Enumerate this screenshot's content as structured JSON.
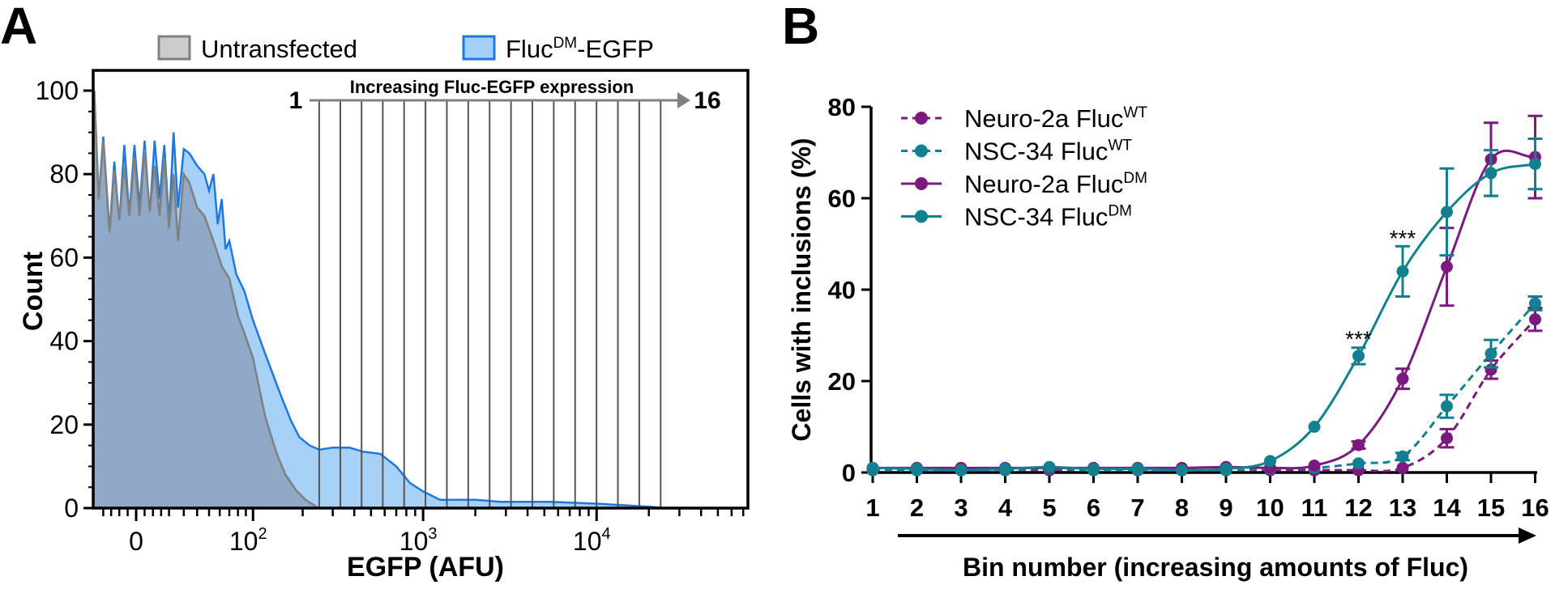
{
  "chart_data": [
    {
      "panel": "A",
      "type": "area",
      "xscale": "biexponential",
      "xlabel": "EGFP (AFU)",
      "ylabel": "Count",
      "xlim": [
        -26,
        75000
      ],
      "ylim": [
        0,
        100
      ],
      "yticks": [
        "0",
        "20",
        "40",
        "60",
        "80",
        "100"
      ],
      "xticks": [
        {
          "value": 0,
          "base": "0",
          "exp": ""
        },
        {
          "value": 100,
          "base": "10",
          "exp": "2"
        },
        {
          "value": 1000,
          "base": "10",
          "exp": "3"
        },
        {
          "value": 10000,
          "base": "10",
          "exp": "4"
        }
      ],
      "legend_position": "top",
      "legend": [
        {
          "main": "Untransfected",
          "sup": "",
          "rest": "",
          "fill": "#cccccc",
          "stroke": "#808080"
        },
        {
          "main": "Fluc",
          "sup": "DM",
          "rest": "-EGFP",
          "fill": "#a3cff8",
          "stroke": "#1f78dc"
        }
      ],
      "gates": {
        "title": "Increasing Fluc-EGFP expression",
        "start_label": "1",
        "end_label": "16",
        "edges": [
          250,
          332,
          441,
          585,
          777,
          1032,
          1371,
          1820,
          2418,
          3211,
          4264,
          5663,
          7521,
          9988,
          13265,
          17617,
          23396
        ]
      },
      "series": [
        {
          "name": "Fluc-DM-EGFP",
          "color": "#1f78dc",
          "fill": "#a8d1f8",
          "points": [
            [
              -26,
              100
            ],
            [
              -23,
              74
            ],
            [
              -20,
              89
            ],
            [
              -16,
              66
            ],
            [
              -13,
              83
            ],
            [
              -10,
              68
            ],
            [
              -7,
              87
            ],
            [
              -4,
              70
            ],
            [
              -1,
              87
            ],
            [
              2,
              72
            ],
            [
              5,
              88
            ],
            [
              8,
              70
            ],
            [
              11,
              88
            ],
            [
              14,
              74
            ],
            [
              17,
              87
            ],
            [
              20,
              68
            ],
            [
              23,
              90
            ],
            [
              26,
              72
            ],
            [
              30,
              86
            ],
            [
              34,
              85
            ],
            [
              40,
              82
            ],
            [
              46,
              80
            ],
            [
              50,
              76
            ],
            [
              54,
              80
            ],
            [
              58,
              68
            ],
            [
              62,
              74
            ],
            [
              66,
              62
            ],
            [
              70,
              64
            ],
            [
              78,
              56
            ],
            [
              88,
              52
            ],
            [
              100,
              45
            ],
            [
              119,
              37
            ],
            [
              145,
              28
            ],
            [
              170,
              21
            ],
            [
              191,
              17
            ],
            [
              220,
              15
            ],
            [
              250,
              14
            ],
            [
              300,
              14.5
            ],
            [
              375,
              14.5
            ],
            [
              450,
              13.5
            ],
            [
              565,
              13
            ],
            [
              700,
              10
            ],
            [
              840,
              6
            ],
            [
              1000,
              4
            ],
            [
              1250,
              2
            ],
            [
              2000,
              2
            ],
            [
              2800,
              1.5
            ],
            [
              5400,
              1.5
            ],
            [
              10600,
              1
            ],
            [
              20700,
              0.3
            ],
            [
              25300,
              0
            ]
          ]
        },
        {
          "name": "Untransfected",
          "color": "#808080",
          "fill": "#8fa9c6",
          "points": [
            [
              -26,
              100
            ],
            [
              -23,
              74
            ],
            [
              -20,
              88
            ],
            [
              -16,
              66
            ],
            [
              -13,
              81
            ],
            [
              -10,
              69
            ],
            [
              -7,
              82
            ],
            [
              -4,
              70
            ],
            [
              -1,
              84
            ],
            [
              2,
              70
            ],
            [
              5,
              86
            ],
            [
              8,
              71
            ],
            [
              11,
              82
            ],
            [
              14,
              70
            ],
            [
              17,
              84
            ],
            [
              20,
              67
            ],
            [
              23,
              80
            ],
            [
              26,
              64
            ],
            [
              30,
              80
            ],
            [
              34,
              78
            ],
            [
              40,
              72
            ],
            [
              46,
              70
            ],
            [
              54,
              64
            ],
            [
              62,
              58
            ],
            [
              70,
              55
            ],
            [
              80,
              46
            ],
            [
              88,
              42
            ],
            [
              100,
              36
            ],
            [
              119,
              22
            ],
            [
              140,
              13
            ],
            [
              158,
              8
            ],
            [
              185,
              4
            ],
            [
              208,
              2
            ],
            [
              248,
              0
            ]
          ]
        }
      ]
    },
    {
      "panel": "B",
      "type": "line",
      "xlabel": "Bin number (increasing amounts of Fluc)",
      "ylabel": "Cells with inclusions (%)",
      "x": [
        1,
        2,
        3,
        4,
        5,
        6,
        7,
        8,
        9,
        10,
        11,
        12,
        13,
        14,
        15,
        16
      ],
      "xlim": [
        1,
        16
      ],
      "ylim": [
        0,
        80
      ],
      "yticks": [
        "0",
        "20",
        "40",
        "60",
        "80"
      ],
      "legend_position": "top-left",
      "series": [
        {
          "main": "Neuro-2a Fluc",
          "sup": "WT",
          "color": "#7b1a7e",
          "dashed": true,
          "values": [
            0.5,
            0.5,
            0.5,
            0.5,
            0.5,
            0.5,
            0.5,
            0.5,
            0.5,
            0.5,
            0.5,
            0.5,
            1,
            7.5,
            22.5,
            33.5
          ],
          "error": [
            0.3,
            0.3,
            0.3,
            0.3,
            0.3,
            0.3,
            0.3,
            0.3,
            0.3,
            0.3,
            0.3,
            0.3,
            0.5,
            2,
            2,
            2.5
          ]
        },
        {
          "main": "NSC-34 Fluc",
          "sup": "WT",
          "color": "#13808f",
          "dashed": true,
          "values": [
            0.5,
            0.5,
            0.5,
            0.5,
            0.8,
            0.5,
            0.5,
            0.5,
            0.5,
            0.8,
            1,
            2,
            3.5,
            14.5,
            26,
            37
          ],
          "error": [
            0.3,
            0.3,
            0.3,
            0.3,
            0.3,
            0.3,
            0.3,
            0.3,
            0.3,
            0.3,
            0.3,
            0.5,
            0.8,
            2.5,
            3,
            1.5
          ]
        },
        {
          "main": "Neuro-2a Fluc",
          "sup": "DM",
          "color": "#7b1a7e",
          "dashed": false,
          "values": [
            1,
            1,
            1,
            1,
            1,
            1,
            1,
            1,
            1.2,
            1,
            1.5,
            6,
            20.5,
            45,
            68.5,
            69
          ],
          "error": [
            0.3,
            0.3,
            0.3,
            0.3,
            0.3,
            0.3,
            0.3,
            0.3,
            0.3,
            0.3,
            0.4,
            0.8,
            2.2,
            8.5,
            8,
            9
          ]
        },
        {
          "main": "NSC-34 Fluc",
          "sup": "DM",
          "color": "#13808f",
          "dashed": false,
          "values": [
            1,
            0.8,
            0.5,
            0.8,
            1.2,
            0.8,
            0.8,
            0.5,
            0.8,
            2.5,
            10,
            25.5,
            44,
            57,
            65.5,
            67.5
          ],
          "error": [
            0.3,
            0.3,
            0.3,
            0.3,
            0.3,
            0.3,
            0.3,
            0.3,
            0.3,
            0.3,
            0.5,
            1.8,
            5.5,
            9.5,
            5,
            5.5
          ]
        }
      ],
      "annotations": [
        {
          "text": "***",
          "x": 12,
          "y": 30
        },
        {
          "text": "***",
          "x": 13,
          "y": 52
        }
      ]
    }
  ],
  "panels": {
    "a_letter": "A",
    "b_letter": "B"
  }
}
